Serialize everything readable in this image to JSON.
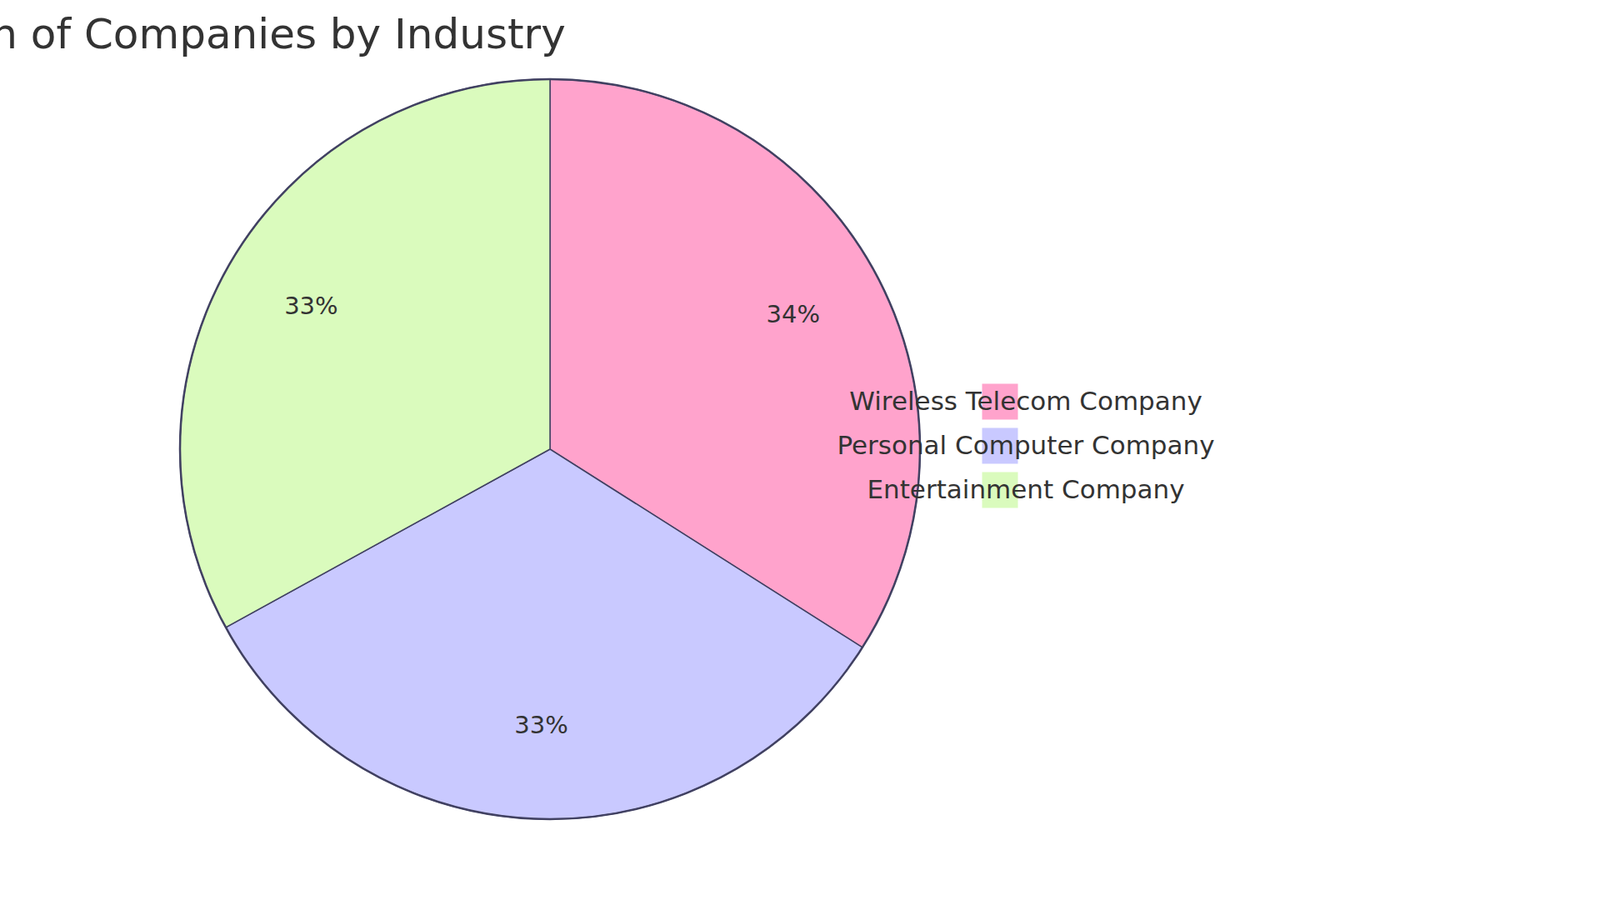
{
  "chart_data": {
    "type": "pie",
    "title": "Distribution of Companies by Industry",
    "categories": [
      "Wireless Telecom Company",
      "Personal Computer Company",
      "Entertainment Company"
    ],
    "values": [
      34,
      33,
      33
    ],
    "value_labels": [
      "34%",
      "33%",
      "33%"
    ],
    "colors": [
      "#ffa3cc",
      "#c9c9ff",
      "#dafbbd"
    ],
    "data_labels": true,
    "legend": "right"
  }
}
